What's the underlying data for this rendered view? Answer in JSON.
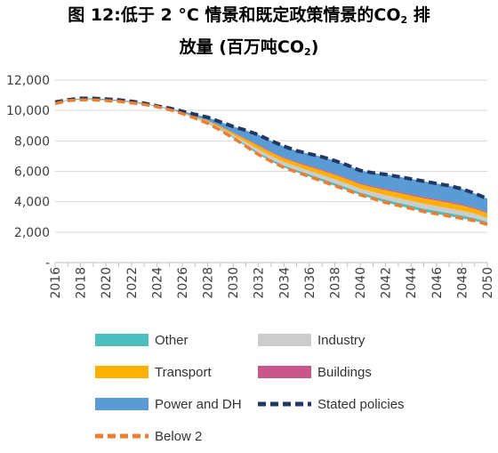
{
  "title": {
    "line1_pre": "图 12:低于 2 °C 情景和既定政策情景的CO",
    "line1_sub": "2",
    "line1_post": " 排",
    "line2_pre": "放量 (百万吨CO",
    "line2_sub": "2",
    "line2_post": ")"
  },
  "chart_data": {
    "type": "area",
    "title": "图 12:低于 2 °C 情景和既定政策情景的CO2 排放量 (百万吨CO2)",
    "xlabel": "",
    "ylabel": "",
    "ylim": [
      0,
      12000
    ],
    "yticks": [
      0,
      2000,
      4000,
      6000,
      8000,
      10000,
      12000
    ],
    "ytick_labels": [
      "-",
      "2,000",
      "4,000",
      "6,000",
      "8,000",
      "10,000",
      "12,000"
    ],
    "x": [
      2016,
      2017,
      2018,
      2019,
      2020,
      2021,
      2022,
      2023,
      2024,
      2025,
      2026,
      2027,
      2028,
      2029,
      2030,
      2031,
      2032,
      2033,
      2034,
      2035,
      2036,
      2037,
      2038,
      2039,
      2040,
      2041,
      2042,
      2043,
      2044,
      2045,
      2046,
      2047,
      2048,
      2049,
      2050
    ],
    "xtick_labels": [
      "2016",
      "2018",
      "2020",
      "2022",
      "2024",
      "2026",
      "2028",
      "2030",
      "2032",
      "2034",
      "2036",
      "2038",
      "2040",
      "2042",
      "2044",
      "2046",
      "2048",
      "2050"
    ],
    "grid": true,
    "legend_position": "bottom",
    "stack_colors": {
      "Other": "#4bbfbf",
      "Industry": "#cccccc",
      "Transport": "#ffb000",
      "Buildings": "#c9578a",
      "Power and DH": "#5b9bd5"
    },
    "series": [
      {
        "name": "Stated policies",
        "color": "#1f3864",
        "style": "dashed",
        "values": [
          10550,
          10700,
          10800,
          10800,
          10750,
          10700,
          10600,
          10480,
          10300,
          10150,
          9950,
          9750,
          9550,
          9250,
          8950,
          8700,
          8400,
          8000,
          7650,
          7350,
          7150,
          6950,
          6700,
          6400,
          6050,
          5900,
          5800,
          5650,
          5500,
          5350,
          5200,
          5050,
          4850,
          4550,
          4200
        ]
      },
      {
        "name": "Below 2",
        "color": "#ed7d31",
        "style": "dashed",
        "values": [
          10450,
          10650,
          10700,
          10700,
          10650,
          10600,
          10500,
          10400,
          10250,
          10050,
          9800,
          9500,
          9150,
          8700,
          8200,
          7650,
          7100,
          6650,
          6250,
          5950,
          5650,
          5350,
          5050,
          4750,
          4450,
          4200,
          3950,
          3750,
          3550,
          3350,
          3200,
          3050,
          2900,
          2750,
          2500
        ]
      }
    ],
    "legend": [
      {
        "name": "Other",
        "kind": "patch",
        "color": "#4bbfbf"
      },
      {
        "name": "Industry",
        "kind": "patch",
        "color": "#cccccc"
      },
      {
        "name": "Transport",
        "kind": "patch",
        "color": "#ffb000"
      },
      {
        "name": "Buildings",
        "kind": "patch",
        "color": "#c9578a"
      },
      {
        "name": "Power and DH",
        "kind": "patch",
        "color": "#5b9bd5"
      },
      {
        "name": "Stated policies",
        "kind": "line",
        "color": "#1f3864"
      },
      {
        "name": "Below 2",
        "kind": "line",
        "color": "#ed7d31"
      }
    ]
  }
}
